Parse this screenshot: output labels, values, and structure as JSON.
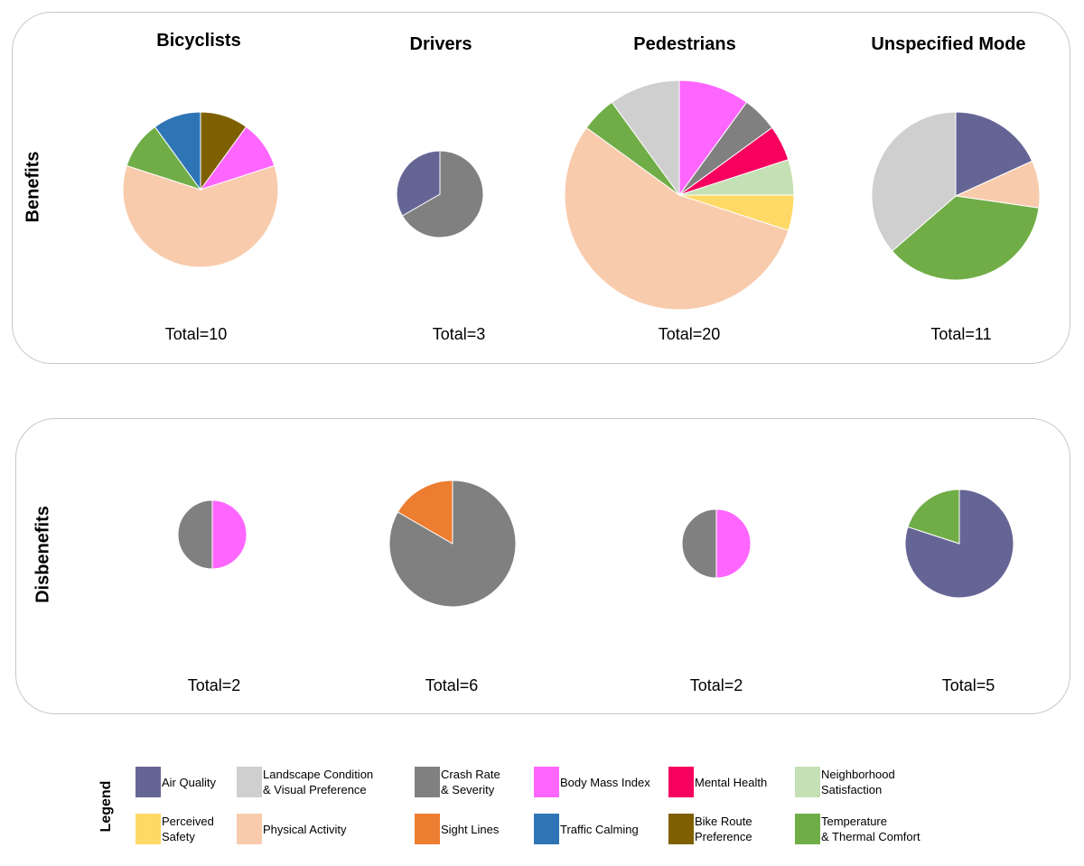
{
  "chart_data": {
    "type": "pie",
    "title": "",
    "columns": [
      "Bicyclists",
      "Drivers",
      "Pedestrians",
      "Unspecified Mode"
    ],
    "rows": [
      "Benefits",
      "Disbenefits"
    ],
    "legend_title": "Legend",
    "categories": [
      {
        "key": "air_quality",
        "label": "Air Quality",
        "color": "#656595"
      },
      {
        "key": "landscape",
        "label": "Landscape Condition\n& Visual Preference",
        "color": "#d0cfd0"
      },
      {
        "key": "crash",
        "label": "Crash Rate\n& Severity",
        "color": "#808080"
      },
      {
        "key": "bmi",
        "label": "Body Mass Index",
        "color": "#ff66ff"
      },
      {
        "key": "mental",
        "label": "Mental Health",
        "color": "#f7015f"
      },
      {
        "key": "neighborhood",
        "label": "Neighborhood\nSatisfaction",
        "color": "#c5e0b4"
      },
      {
        "key": "perceived_safety",
        "label": "Perceived\nSafety",
        "color": "#ffd965"
      },
      {
        "key": "physical",
        "label": "Physical Activity",
        "color": "#f8cbad"
      },
      {
        "key": "sight",
        "label": "Sight Lines",
        "color": "#ed7d31"
      },
      {
        "key": "traffic",
        "label": "Traffic Calming",
        "color": "#2e75b6"
      },
      {
        "key": "bike_route",
        "label": "Bike Route\nPreference",
        "color": "#7f6000"
      },
      {
        "key": "temperature",
        "label": "Temperature\n& Thermal Comfort",
        "color": "#70ad47"
      }
    ],
    "pies": [
      {
        "row": "Benefits",
        "column": "Bicyclists",
        "total_label": "Total=10",
        "total": 10,
        "slices": [
          {
            "category": "bike_route",
            "value": 1
          },
          {
            "category": "bmi",
            "value": 1
          },
          {
            "category": "physical",
            "value": 6
          },
          {
            "category": "temperature",
            "value": 1
          },
          {
            "category": "traffic",
            "value": 1
          }
        ]
      },
      {
        "row": "Benefits",
        "column": "Drivers",
        "total_label": "Total=3",
        "total": 3,
        "slices": [
          {
            "category": "crash",
            "value": 2
          },
          {
            "category": "air_quality",
            "value": 1
          }
        ]
      },
      {
        "row": "Benefits",
        "column": "Pedestrians",
        "total_label": "Total=20",
        "total": 20,
        "slices": [
          {
            "category": "bmi",
            "value": 2
          },
          {
            "category": "crash",
            "value": 1
          },
          {
            "category": "mental",
            "value": 1
          },
          {
            "category": "neighborhood",
            "value": 1
          },
          {
            "category": "perceived_safety",
            "value": 1
          },
          {
            "category": "physical",
            "value": 11
          },
          {
            "category": "temperature",
            "value": 1
          },
          {
            "category": "landscape",
            "value": 2
          }
        ]
      },
      {
        "row": "Benefits",
        "column": "Unspecified Mode",
        "total_label": "Total=11",
        "total": 11,
        "slices": [
          {
            "category": "air_quality",
            "value": 2
          },
          {
            "category": "physical",
            "value": 1
          },
          {
            "category": "temperature",
            "value": 4
          },
          {
            "category": "landscape",
            "value": 4
          }
        ]
      },
      {
        "row": "Disbenefits",
        "column": "Bicyclists",
        "total_label": "Total=2",
        "total": 2,
        "slices": [
          {
            "category": "bmi",
            "value": 1
          },
          {
            "category": "crash",
            "value": 1
          }
        ]
      },
      {
        "row": "Disbenefits",
        "column": "Drivers",
        "total_label": "Total=6",
        "total": 6,
        "slices": [
          {
            "category": "crash",
            "value": 5
          },
          {
            "category": "sight",
            "value": 1
          }
        ]
      },
      {
        "row": "Disbenefits",
        "column": "Pedestrians",
        "total_label": "Total=2",
        "total": 2,
        "slices": [
          {
            "category": "crash",
            "value": 1
          },
          {
            "category": "bmi",
            "value": 1
          }
        ]
      },
      {
        "row": "Disbenefits",
        "column": "Unspecified Mode",
        "total_label": "Total=5",
        "total": 5,
        "slices": [
          {
            "category": "air_quality",
            "value": 4
          },
          {
            "category": "temperature",
            "value": 1
          }
        ]
      }
    ]
  }
}
